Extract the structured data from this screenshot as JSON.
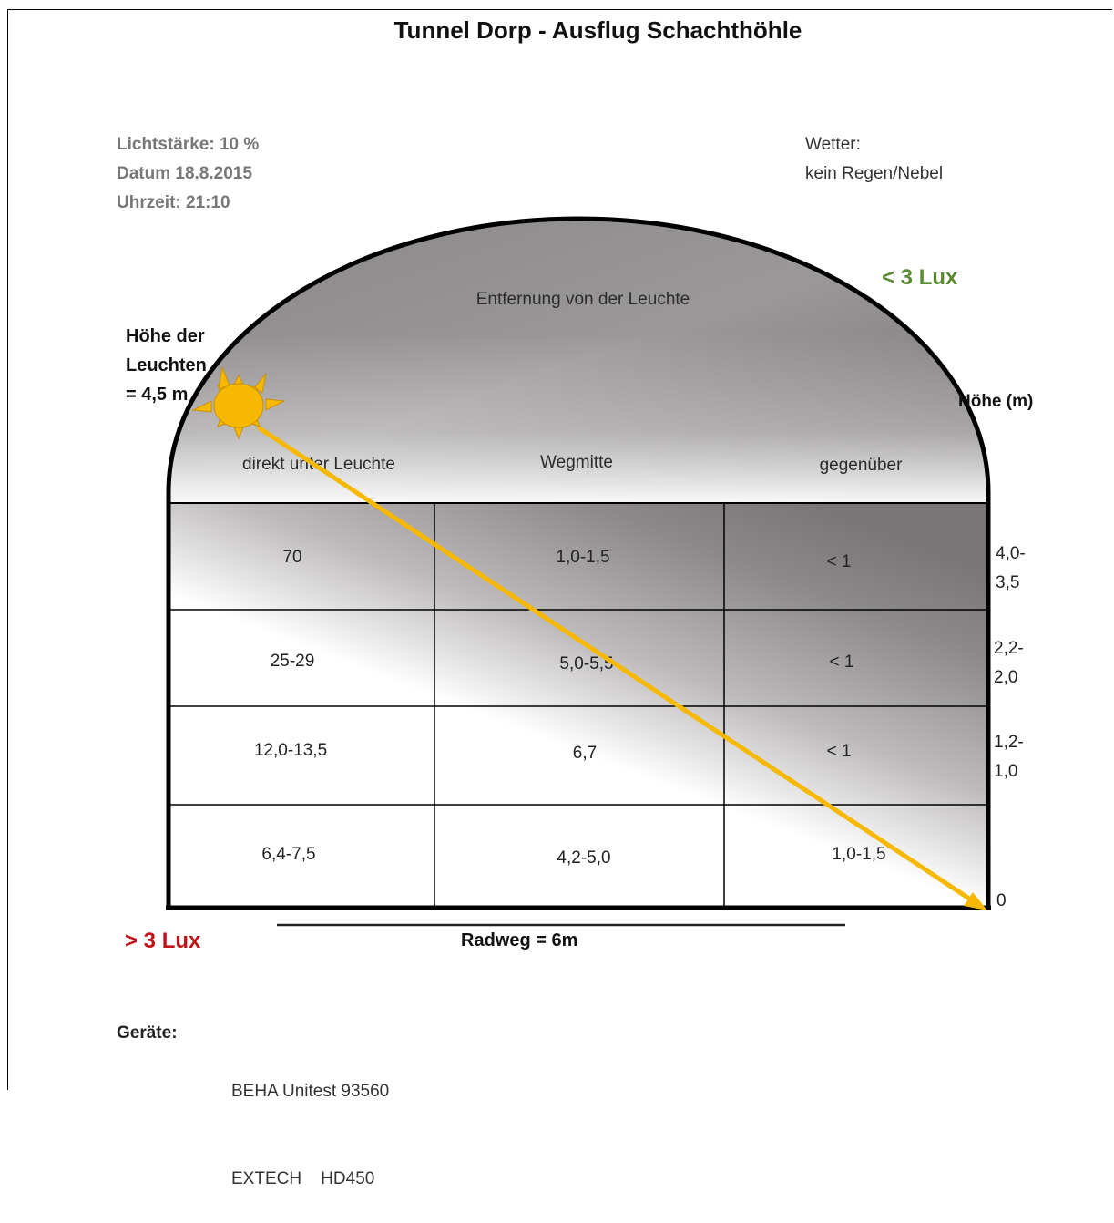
{
  "title": "Tunnel Dorp - Ausflug Schachthöhle",
  "info": {
    "lichtstaerke": "Lichtstärke: 10 %",
    "datum": "Datum 18.8.2015",
    "uhrzeit": "Uhrzeit: 21:10"
  },
  "weather": {
    "label": "Wetter:",
    "value": "kein Regen/Nebel"
  },
  "lux_low": "< 3 Lux",
  "lux_high": "> 3 Lux",
  "distance_header": "Entfernung von der Leuchte",
  "lamp_height": [
    "Höhe der",
    "Leuchten",
    "= 4,5 m"
  ],
  "height_axis_title": "Höhe (m)",
  "columns": [
    "direkt unter Leuchte",
    "Wegmitte",
    "gegenüber"
  ],
  "rows": [
    {
      "values": [
        "70",
        "1,0-1,5",
        "< 1"
      ],
      "height": [
        "4,0-",
        "3,5"
      ]
    },
    {
      "values": [
        "25-29",
        "5,0-5,5",
        "< 1"
      ],
      "height": [
        "2,2-",
        "2,0"
      ]
    },
    {
      "values": [
        "12,0-13,5",
        "6,7",
        "< 1"
      ],
      "height": [
        "1,2-",
        "1,0"
      ]
    },
    {
      "values": [
        "6,4-7,5",
        "4,2-5,0",
        "1,0-1,5"
      ],
      "height": [
        "",
        ""
      ]
    }
  ],
  "ground_height": "0",
  "radweg": "Radweg = 6m",
  "devices": {
    "label": "Geräte:",
    "items": [
      "BEHA Unitest 93560",
      "EXTECH    HD450"
    ]
  },
  "colors": {
    "lux_low": "#5a8a32",
    "lux_high": "#c0141a",
    "light_ray": "#f6b800",
    "sun": "#f6b800"
  }
}
